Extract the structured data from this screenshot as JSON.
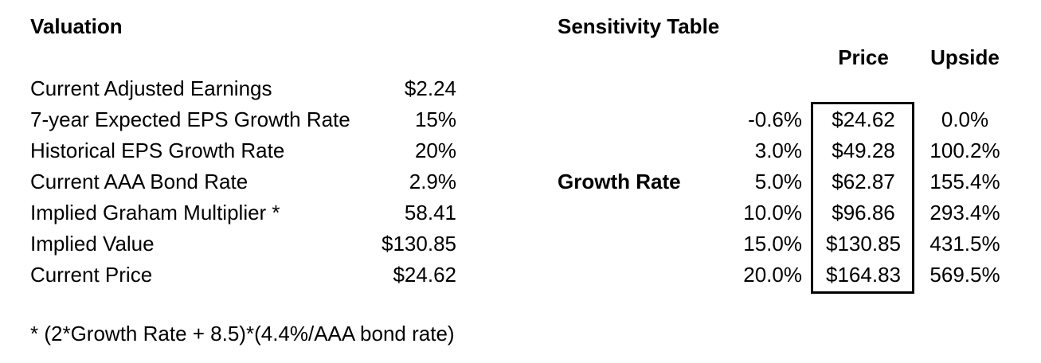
{
  "valuation": {
    "title": "Valuation",
    "rows": [
      {
        "label": "Current Adjusted Earnings",
        "value": "$2.24"
      },
      {
        "label": "7-year Expected EPS Growth Rate",
        "value": "15%"
      },
      {
        "label": "Historical EPS Growth Rate",
        "value": "20%"
      },
      {
        "label": "Current AAA Bond Rate",
        "value": "2.9%"
      },
      {
        "label": "Implied Graham Multiplier *",
        "value": "58.41"
      },
      {
        "label": "Implied Value",
        "value": "$130.85"
      },
      {
        "label": "Current Price",
        "value": "$24.62"
      }
    ],
    "footnote": "* (2*Growth Rate + 8.5)*(4.4%/AAA bond rate)"
  },
  "sensitivity": {
    "title": "Sensitivity Table",
    "row_axis_label": "Growth Rate",
    "columns": {
      "price": "Price",
      "upside": "Upside"
    },
    "rows": [
      {
        "growth": "-0.6%",
        "price": "$24.62",
        "upside": "0.0%"
      },
      {
        "growth": "3.0%",
        "price": "$49.28",
        "upside": "100.2%"
      },
      {
        "growth": "5.0%",
        "price": "$62.87",
        "upside": "155.4%"
      },
      {
        "growth": "10.0%",
        "price": "$96.86",
        "upside": "293.4%"
      },
      {
        "growth": "15.0%",
        "price": "$130.85",
        "upside": "431.5%"
      },
      {
        "growth": "20.0%",
        "price": "$164.83",
        "upside": "569.5%"
      }
    ]
  },
  "colors": {
    "background": "#ffffff",
    "text": "#000000",
    "price_box_border": "#000000"
  }
}
